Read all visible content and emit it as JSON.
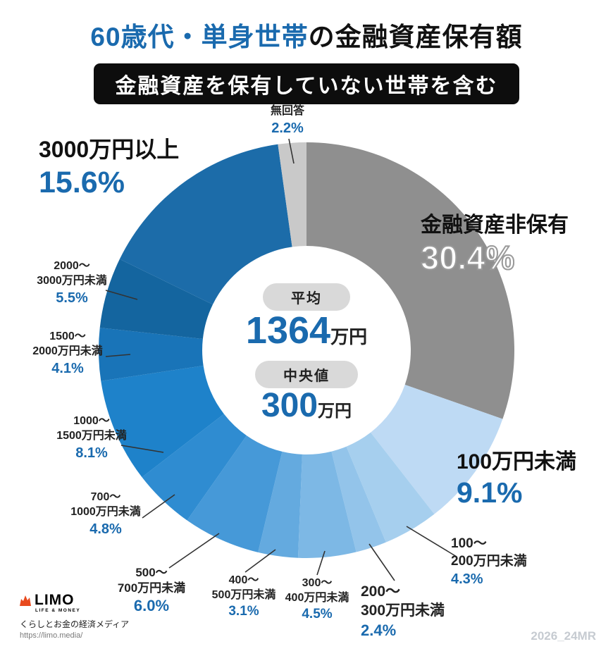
{
  "title": {
    "highlight": "60歳代・単身世帯",
    "rest": "の金融資産保有額"
  },
  "subtitle": "金融資産を保有していない世帯を含む",
  "center": {
    "average_label": "平均",
    "average_value": "1364",
    "average_unit": "万円",
    "median_label": "中央値",
    "median_value": "300",
    "median_unit": "万円"
  },
  "footer": {
    "brand": "LIMO",
    "brand_sub": "LIFE & MONEY",
    "tagline": "くらしとお金の経済メディア",
    "url": "https://limo.media/",
    "code": "2026_24MR"
  },
  "colors": {
    "accent_blue": "#1a6aae",
    "gray_segment": "#8f8f8f",
    "no_answer_gray": "#c9c9c9"
  },
  "chart_data": {
    "type": "pie",
    "donut": true,
    "start": "top",
    "direction": "clockwise",
    "unit": "%",
    "title": "60歳代・単身世帯の金融資産保有額（金融資産を保有していない世帯を含む）",
    "center_stats": [
      {
        "label": "平均",
        "value": 1364,
        "unit": "万円"
      },
      {
        "label": "中央値",
        "value": 300,
        "unit": "万円"
      }
    ],
    "segments": [
      {
        "id": "hihoyuu",
        "l1": "金融資産非保有",
        "l2": "",
        "value": 30.4,
        "pct": "30.4%",
        "color": "#8f8f8f"
      },
      {
        "id": "lt100",
        "l1": "100万円未満",
        "l2": "",
        "value": 9.1,
        "pct": "9.1%",
        "color": "#bedaf4"
      },
      {
        "id": "100-200",
        "l1": "100〜",
        "l2": "200万円未満",
        "value": 4.3,
        "pct": "4.3%",
        "color": "#a6cfee"
      },
      {
        "id": "200-300",
        "l1": "200〜",
        "l2": "300万円未満",
        "value": 2.4,
        "pct": "2.4%",
        "color": "#93c4ea"
      },
      {
        "id": "300-400",
        "l1": "300〜",
        "l2": "400万円未満",
        "value": 4.5,
        "pct": "4.5%",
        "color": "#7db8e5"
      },
      {
        "id": "400-500",
        "l1": "400〜",
        "l2": "500万円未満",
        "value": 3.1,
        "pct": "3.1%",
        "color": "#64aadf"
      },
      {
        "id": "500-700",
        "l1": "500〜",
        "l2": "700万円未満",
        "value": 6.0,
        "pct": "6.0%",
        "color": "#4699d8"
      },
      {
        "id": "700-1000",
        "l1": "700〜",
        "l2": "1000万円未満",
        "value": 4.8,
        "pct": "4.8%",
        "color": "#2f8cd1"
      },
      {
        "id": "1000-1500",
        "l1": "1000〜",
        "l2": "1500万円未満",
        "value": 8.1,
        "pct": "8.1%",
        "color": "#1e82ca"
      },
      {
        "id": "1500-2000",
        "l1": "1500〜",
        "l2": "2000万円未満",
        "value": 4.1,
        "pct": "4.1%",
        "color": "#1974b8"
      },
      {
        "id": "2000-3000",
        "l1": "2000〜",
        "l2": "3000万円未満",
        "value": 5.5,
        "pct": "5.5%",
        "color": "#14659f"
      },
      {
        "id": "ge3000",
        "l1": "3000万円以上",
        "l2": "",
        "value": 15.6,
        "pct": "15.6%",
        "color": "#1c6ca9"
      },
      {
        "id": "mukaitou",
        "l1": "無回答",
        "l2": "",
        "value": 2.2,
        "pct": "2.2%",
        "color": "#c9c9c9"
      }
    ]
  }
}
